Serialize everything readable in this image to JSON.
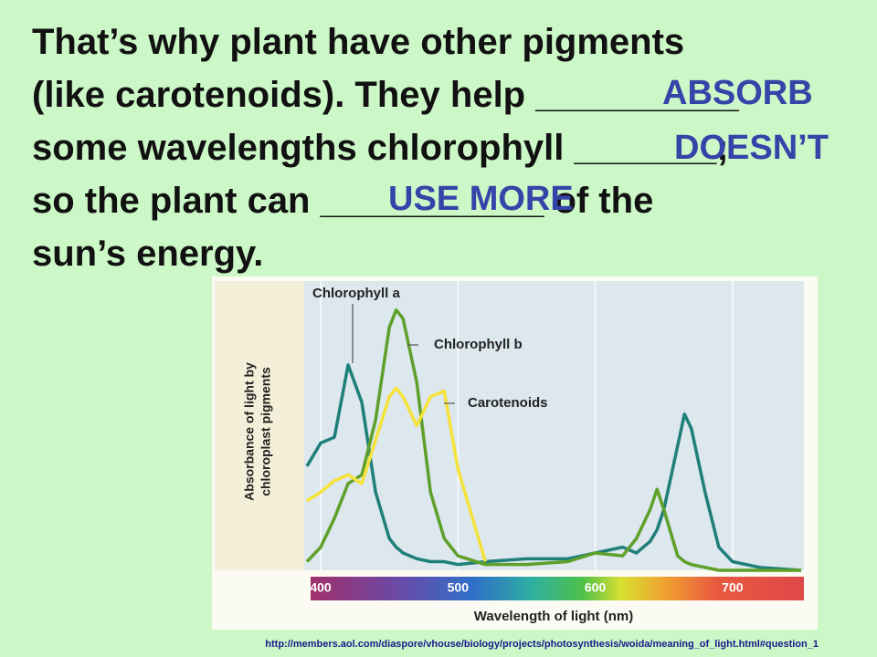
{
  "slide": {
    "lines": [
      [
        "That’s why plant have other pigments"
      ],
      [
        "(like carotenoids). They help ",
        "__________"
      ],
      [
        "some wavelengths chlorophyll ",
        "_______",
        ";"
      ],
      [
        "so the plant can ",
        "___________",
        " of the"
      ],
      [
        "sun’s energy."
      ]
    ],
    "answers": [
      "ABSORB",
      "DOESN’T",
      "USE MORE"
    ],
    "source": "http://members.aol.com/diaspore/vhouse/biology/projects/photosynthesis/woida/meaning_of_light.html#question_1"
  },
  "chart_data": {
    "type": "line",
    "xlabel": "Wavelength of light (nm)",
    "ylabel": [
      "Absorbance of light by",
      "chloroplast pigments"
    ],
    "x": [
      390,
      400,
      410,
      420,
      430,
      440,
      450,
      455,
      460,
      470,
      480,
      490,
      500,
      520,
      550,
      580,
      600,
      620,
      630,
      640,
      645,
      650,
      660,
      665,
      670,
      680,
      690,
      700,
      720,
      750
    ],
    "xlim": [
      388,
      752
    ],
    "xticks": [
      400,
      500,
      600,
      700
    ],
    "ylim": [
      0,
      1
    ],
    "grid": true,
    "series": [
      {
        "name": "Chlorophyll a",
        "color": "#1f7f7a",
        "values": [
          0.36,
          0.44,
          0.46,
          0.71,
          0.58,
          0.27,
          0.11,
          0.08,
          0.06,
          0.04,
          0.03,
          0.03,
          0.02,
          0.03,
          0.04,
          0.04,
          0.06,
          0.08,
          0.06,
          0.1,
          0.14,
          0.21,
          0.43,
          0.54,
          0.49,
          0.27,
          0.08,
          0.03,
          0.01,
          0.0
        ]
      },
      {
        "name": "Chlorophyll b",
        "color": "#5ea02a",
        "values": [
          0.03,
          0.08,
          0.18,
          0.3,
          0.33,
          0.52,
          0.84,
          0.9,
          0.87,
          0.65,
          0.27,
          0.11,
          0.05,
          0.02,
          0.02,
          0.03,
          0.06,
          0.05,
          0.11,
          0.21,
          0.28,
          0.21,
          0.05,
          0.03,
          0.02,
          0.01,
          0.0,
          0.0,
          0.0,
          0.0
        ]
      },
      {
        "name": "Carotenoids",
        "color": "#f5e23a",
        "values": [
          0.24,
          0.27,
          0.31,
          0.33,
          0.3,
          0.45,
          0.6,
          0.63,
          0.6,
          0.5,
          0.6,
          0.62,
          0.35,
          0.03,
          null,
          null,
          null,
          null,
          null,
          null,
          null,
          null,
          null,
          null,
          null,
          null,
          null,
          null,
          null,
          null
        ]
      }
    ]
  }
}
